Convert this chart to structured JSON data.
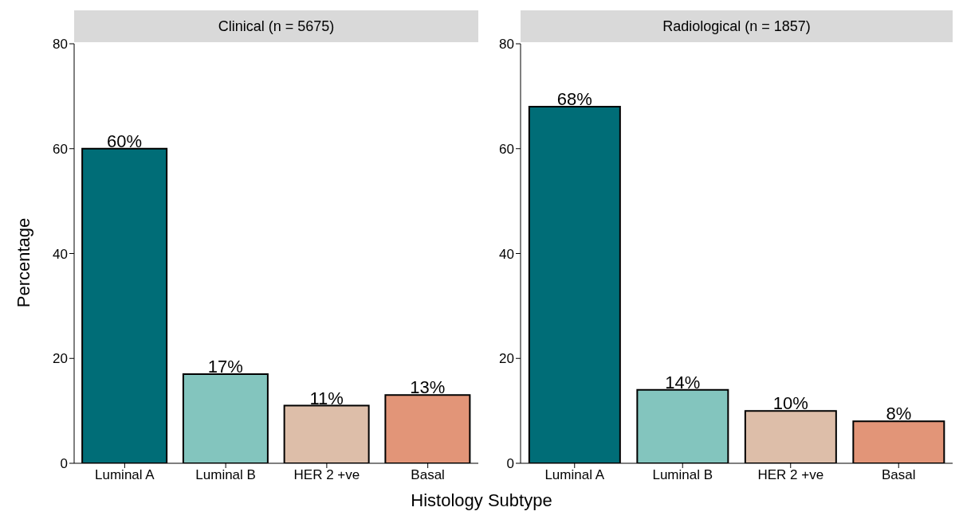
{
  "chart_data": [
    {
      "type": "bar",
      "title": "Clinical (n = 5675)",
      "ylabel": "Percentage",
      "xlabel": "Histology Subtype",
      "categories": [
        "Luminal A",
        "Luminal B",
        "HER 2 +ve",
        "Basal"
      ],
      "values": [
        60,
        17,
        11,
        13
      ],
      "value_labels": [
        "60%",
        "17%",
        "11%",
        "13%"
      ],
      "colors": [
        "#006d77",
        "#83c5be",
        "#ddbea9",
        "#e29578"
      ],
      "ylim": [
        0,
        80
      ],
      "yticks": [
        0,
        20,
        40,
        60,
        80
      ],
      "grid": false
    },
    {
      "type": "bar",
      "title": "Radiological (n = 1857)",
      "categories": [
        "Luminal A",
        "Luminal B",
        "HER 2 +ve",
        "Basal"
      ],
      "values": [
        68,
        14,
        10,
        8
      ],
      "value_labels": [
        "68%",
        "14%",
        "10%",
        "8%"
      ],
      "colors": [
        "#006d77",
        "#83c5be",
        "#ddbea9",
        "#e29578"
      ],
      "ylim": [
        0,
        80
      ],
      "yticks": [
        0,
        20,
        40,
        60,
        80
      ],
      "grid": false
    }
  ]
}
